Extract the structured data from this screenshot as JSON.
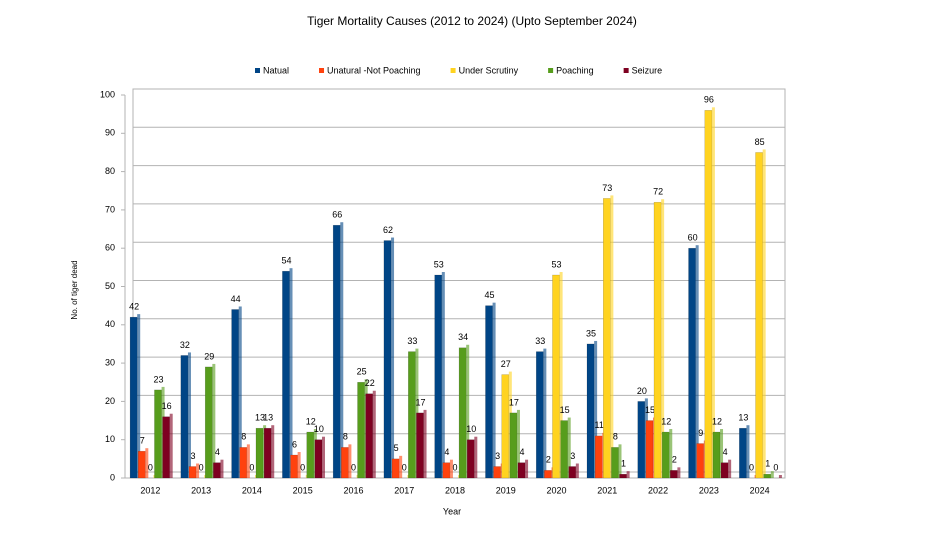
{
  "chart_data": {
    "type": "bar",
    "title": "Tiger Mortality Causes (2012 to 2024) (Upto September 2024)",
    "x_label": "Year",
    "y_label": "No. of tiger dead",
    "categories": [
      "2012",
      "2013",
      "2014",
      "2015",
      "2016",
      "2017",
      "2018",
      "2019",
      "2020",
      "2021",
      "2022",
      "2023",
      "2024"
    ],
    "series": [
      {
        "name": "Natual",
        "color": "#004586",
        "values": [
          42,
          32,
          44,
          54,
          66,
          62,
          53,
          45,
          33,
          35,
          20,
          60,
          13
        ]
      },
      {
        "name": "Unatural -Not Poaching",
        "color": "#ff420e",
        "values": [
          7,
          3,
          8,
          6,
          8,
          5,
          4,
          3,
          2,
          11,
          15,
          9,
          0
        ]
      },
      {
        "name": "Under Scrutiny",
        "color": "#ffd320",
        "values": [
          0,
          0,
          0,
          0,
          0,
          0,
          0,
          27,
          53,
          73,
          72,
          96,
          85
        ]
      },
      {
        "name": "Poaching",
        "color": "#579d1c",
        "values": [
          23,
          29,
          13,
          12,
          25,
          33,
          34,
          17,
          15,
          8,
          12,
          12,
          1
        ]
      },
      {
        "name": "Seizure",
        "color": "#7e0021",
        "values": [
          16,
          4,
          13,
          10,
          22,
          17,
          10,
          4,
          3,
          1,
          2,
          4,
          0
        ]
      }
    ],
    "ylim": [
      0,
      100
    ],
    "yticks": [
      0,
      10,
      20,
      30,
      40,
      50,
      60,
      70,
      80,
      90,
      100
    ],
    "grid": true,
    "legend": "top"
  }
}
